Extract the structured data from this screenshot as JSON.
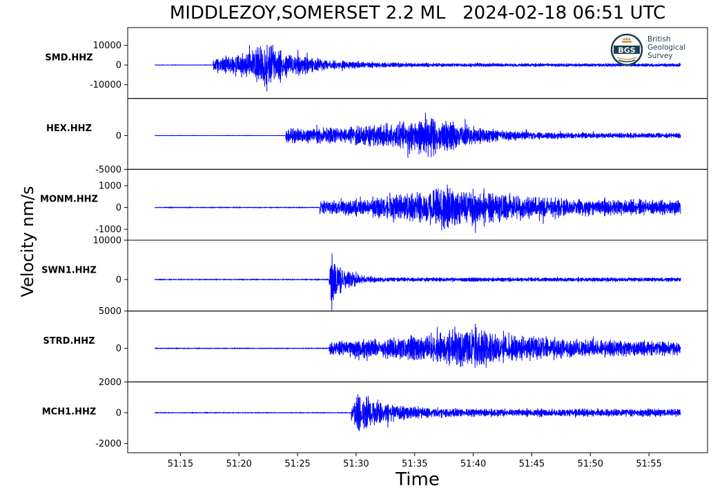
{
  "chart_data": {
    "type": "line",
    "title": "MIDDLEZOY,SOMERSET 2.2 ML   2024-02-18 06:51 UTC",
    "xlabel": "Time",
    "ylabel": "Velocity nm/s",
    "x_range_seconds": [
      45,
      60
    ],
    "x_ticks": [
      "51:15",
      "51:20",
      "51:25",
      "51:30",
      "51:35",
      "51:40",
      "51:45",
      "51:50",
      "51:55"
    ],
    "line_color": "#0000ff",
    "grid": false,
    "logo_text": [
      "British",
      "Geological",
      "Survey"
    ],
    "logo_abbr": "BGS",
    "panels": [
      {
        "station": "SMD.HHZ",
        "ylim": [
          -17000,
          19000
        ],
        "y_ticks": [
          "10000",
          "0",
          "-10000"
        ],
        "y_tick_values": [
          10000,
          0,
          -10000
        ],
        "trace": {
          "start": 12.8,
          "end": 57.7,
          "onset": 17.8,
          "peak_time": 22.2,
          "peak_amp": 17000,
          "noise": 120,
          "decay": 3.2,
          "coda": 0.07,
          "seed": 11
        }
      },
      {
        "station": "HEX.HHZ",
        "ylim": [
          -5000,
          5500
        ],
        "y_ticks": [
          "0",
          "-5000"
        ],
        "y_tick_values": [
          0,
          -5000
        ],
        "trace": {
          "start": 12.8,
          "end": 57.7,
          "onset": 24.0,
          "peak_time": 36.5,
          "peak_amp": 4500,
          "noise": 30,
          "decay": 3.5,
          "coda": 0.12,
          "seed": 23
        }
      },
      {
        "station": "MONM.HHZ",
        "ylim": [
          -1500,
          1750
        ],
        "y_ticks": [
          "1000",
          "0",
          "-1000"
        ],
        "y_tick_values": [
          1000,
          0,
          -1000
        ],
        "trace": {
          "start": 12.8,
          "end": 57.7,
          "onset": 26.9,
          "peak_time": 38.0,
          "peak_amp": 1450,
          "noise": 20,
          "decay": 6.0,
          "coda": 0.3,
          "seed": 37
        }
      },
      {
        "station": "SWN1.HHZ",
        "ylim": [
          -8000,
          10000
        ],
        "y_ticks": [
          "10000",
          "0"
        ],
        "y_tick_values": [
          10000,
          0
        ],
        "trace": {
          "start": 12.8,
          "end": 57.7,
          "onset": 27.7,
          "peak_time": 27.9,
          "peak_amp": 9600,
          "noise": 120,
          "decay": 1.2,
          "coda": 0.07,
          "seed": 41
        }
      },
      {
        "station": "STRD.HHZ",
        "ylim": [
          -4500,
          5000
        ],
        "y_ticks": [
          "5000",
          "0"
        ],
        "y_tick_values": [
          5000,
          0
        ],
        "trace": {
          "start": 12.8,
          "end": 57.7,
          "onset": 27.7,
          "peak_time": 40.2,
          "peak_amp": 4400,
          "noise": 60,
          "decay": 5.0,
          "coda": 0.3,
          "seed": 53
        }
      },
      {
        "station": "MCH1.HHZ",
        "ylim": [
          -2600,
          2000
        ],
        "y_ticks": [
          "2000",
          "0",
          "-2000"
        ],
        "y_tick_values": [
          2000,
          0,
          -2000
        ],
        "trace": {
          "start": 12.8,
          "end": 57.7,
          "onset": 29.6,
          "peak_time": 30.1,
          "peak_amp": 2000,
          "noise": 25,
          "decay": 2.5,
          "coda": 0.18,
          "seed": 67
        }
      }
    ]
  }
}
